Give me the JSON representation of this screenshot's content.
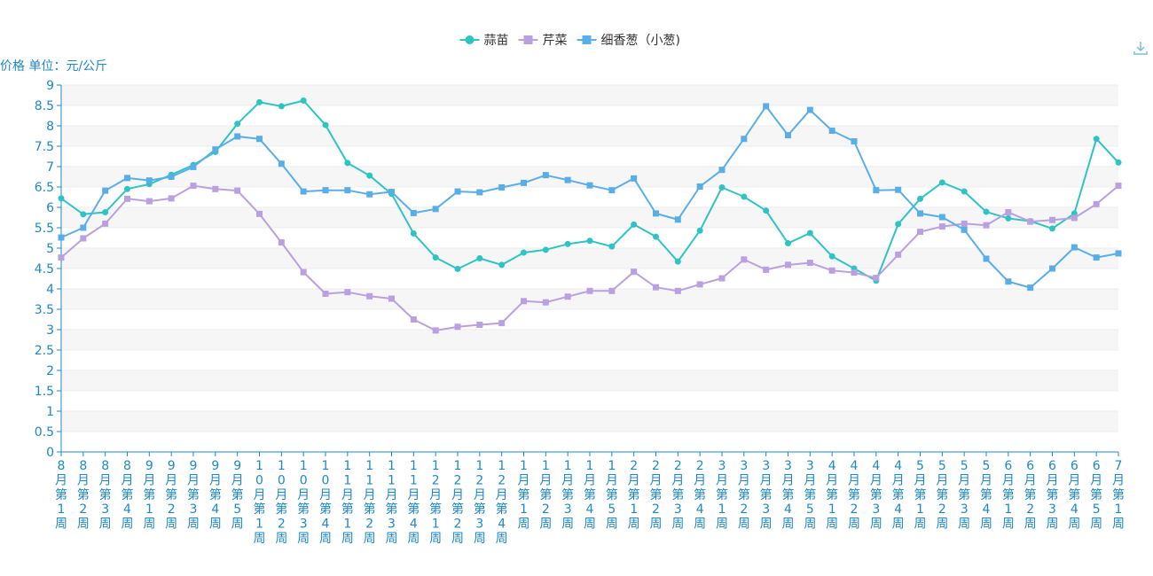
{
  "chart_data": {
    "type": "line",
    "ylabel": "价格 单位：元/公斤",
    "ylim": [
      0,
      9
    ],
    "yticks": [
      "0",
      "0.5",
      "1",
      "1.5",
      "2",
      "2.5",
      "3",
      "3.5",
      "4",
      "4.5",
      "5",
      "5.5",
      "6",
      "6.5",
      "7",
      "7.5",
      "8",
      "8.5",
      "9"
    ],
    "categories": [
      "8月第1周",
      "8月第2周",
      "8月第3周",
      "8月第4周",
      "9月第1周",
      "9月第2周",
      "9月第3周",
      "9月第4周",
      "9月第5周",
      "10月第1周",
      "10月第2周",
      "10月第3周",
      "10月第4周",
      "11月第1周",
      "11月第2周",
      "11月第3周",
      "11月第4周",
      "12月第1周",
      "12月第2周",
      "12月第3周",
      "12月第4周",
      "1月第1周",
      "1月第2周",
      "1月第3周",
      "1月第4周",
      "1月第5周",
      "2月第1周",
      "2月第2周",
      "2月第3周",
      "2月第4周",
      "3月第1周",
      "3月第2周",
      "3月第3周",
      "3月第4周",
      "3月第5周",
      "4月第1周",
      "4月第2周",
      "4月第3周",
      "4月第4周",
      "5月第1周",
      "5月第2周",
      "5月第3周",
      "5月第4周",
      "6月第1周",
      "6月第2周",
      "6月第3周",
      "6月第4周",
      "6月第5周",
      "7月第1周"
    ],
    "legend_position": "top-center",
    "grid": "horizontal-bands",
    "series": [
      {
        "name": "蒜苗",
        "color": "#2ec4c4",
        "marker": "circle",
        "values": [
          6.22,
          5.83,
          5.88,
          6.45,
          6.57,
          6.8,
          7.04,
          7.36,
          8.05,
          8.58,
          8.48,
          8.62,
          8.02,
          7.09,
          6.78,
          6.33,
          5.36,
          4.77,
          4.49,
          4.75,
          4.59,
          4.89,
          4.96,
          5.1,
          5.18,
          5.04,
          5.58,
          5.28,
          4.67,
          5.43,
          6.49,
          6.26,
          5.92,
          5.12,
          5.37,
          4.8,
          4.5,
          4.2,
          5.59,
          6.21,
          6.61,
          6.39,
          5.89,
          5.73,
          5.66,
          5.48,
          5.85,
          7.68,
          7.1
        ]
      },
      {
        "name": "芹菜",
        "color": "#b9a0e0",
        "marker": "square",
        "values": [
          4.77,
          5.24,
          5.6,
          6.21,
          6.15,
          6.22,
          6.53,
          6.45,
          6.41,
          5.84,
          5.14,
          4.41,
          3.88,
          3.92,
          3.82,
          3.76,
          3.25,
          2.98,
          3.07,
          3.12,
          3.16,
          3.7,
          3.67,
          3.81,
          3.95,
          3.95,
          4.42,
          4.04,
          3.95,
          4.11,
          4.26,
          4.72,
          4.47,
          4.59,
          4.64,
          4.45,
          4.4,
          4.27,
          4.84,
          5.4,
          5.53,
          5.6,
          5.56,
          5.88,
          5.65,
          5.69,
          5.74,
          6.08,
          6.53
        ]
      },
      {
        "name": "细香葱（小葱)",
        "color": "#5aaee8",
        "marker": "square",
        "values": [
          5.26,
          5.5,
          6.41,
          6.72,
          6.66,
          6.75,
          6.99,
          7.42,
          7.74,
          7.68,
          7.07,
          6.39,
          6.42,
          6.42,
          6.32,
          6.38,
          5.86,
          5.96,
          6.39,
          6.37,
          6.49,
          6.6,
          6.79,
          6.67,
          6.54,
          6.42,
          6.71,
          5.85,
          5.7,
          6.51,
          6.92,
          7.68,
          8.48,
          7.77,
          8.39,
          7.88,
          7.62,
          6.42,
          6.43,
          5.85,
          5.76,
          5.45,
          4.74,
          4.18,
          4.03,
          4.5,
          5.02,
          4.77,
          4.87
        ]
      }
    ]
  },
  "toolbar": {
    "download_icon": "download-icon"
  }
}
